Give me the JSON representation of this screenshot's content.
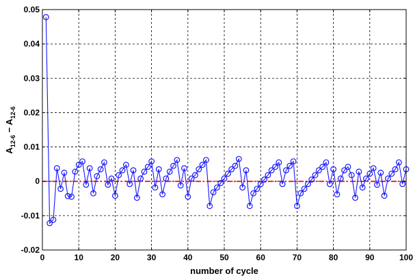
{
  "chart_data": {
    "type": "line",
    "xlabel": "number of cycle",
    "ylabel_main": "A",
    "ylabel_sub": "12-6",
    "ylabel_op": " − ",
    "xlim": [
      0,
      100
    ],
    "ylim": [
      -0.02,
      0.05
    ],
    "xticks": [
      0,
      10,
      20,
      30,
      40,
      50,
      60,
      70,
      80,
      90,
      100
    ],
    "yticks": [
      -0.02,
      -0.01,
      0,
      0.01,
      0.02,
      0.03,
      0.04,
      0.05
    ],
    "ytick_labels": [
      "-0.02",
      "-0.01",
      "0",
      "0.01",
      "0.02",
      "0.03",
      "0.04",
      "0.05"
    ],
    "grid": true,
    "series": [
      {
        "color": "#1515ff",
        "marker": "circle",
        "x": [
          1,
          2,
          3,
          4,
          5,
          6,
          7,
          8,
          9,
          10,
          11,
          12,
          13,
          14,
          15,
          16,
          17,
          18,
          19,
          20,
          21,
          22,
          23,
          24,
          25,
          26,
          27,
          28,
          29,
          30,
          31,
          32,
          33,
          34,
          35,
          36,
          37,
          38,
          39,
          40,
          41,
          42,
          43,
          44,
          45,
          46,
          47,
          48,
          49,
          50,
          51,
          52,
          53,
          54,
          55,
          56,
          57,
          58,
          59,
          60,
          61,
          62,
          63,
          64,
          65,
          66,
          67,
          68,
          69,
          70,
          71,
          72,
          73,
          74,
          75,
          76,
          77,
          78,
          79,
          80,
          81,
          82,
          83,
          84,
          85,
          86,
          87,
          88,
          89,
          90,
          91,
          92,
          93,
          94,
          95,
          96,
          97,
          98,
          99,
          100
        ],
        "y": [
          0.0478,
          -0.0122,
          -0.0112,
          0.0038,
          -0.0022,
          0.0025,
          -0.0043,
          -0.0045,
          0.0028,
          0.0048,
          0.0058,
          -0.001,
          0.0038,
          -0.0035,
          0.0015,
          0.0035,
          0.0055,
          -0.001,
          0.0008,
          -0.0042,
          0.0018,
          0.0032,
          0.0048,
          -0.0008,
          0.0032,
          -0.0048,
          0.0008,
          0.0028,
          0.0042,
          0.0058,
          -0.0018,
          0.0035,
          -0.0038,
          0.0008,
          0.0028,
          0.0045,
          0.0062,
          -0.0012,
          0.0038,
          -0.0045,
          0.0008,
          0.0018,
          0.0035,
          0.0048,
          0.0062,
          -0.0072,
          -0.0032,
          -0.0018,
          -0.0005,
          0.0008,
          0.0022,
          0.0035,
          0.0045,
          0.0065,
          -0.0018,
          0.0032,
          -0.0072,
          -0.0035,
          -0.0022,
          -0.0008,
          0.0005,
          0.0018,
          0.0032,
          0.0042,
          0.0055,
          -0.0008,
          0.0032,
          0.0045,
          0.0058,
          -0.0072,
          -0.0035,
          -0.0022,
          -0.0008,
          0.0005,
          0.0018,
          0.0032,
          0.0042,
          0.0055,
          -0.0008,
          0.0035,
          -0.0038,
          0.0008,
          0.0032,
          0.0042,
          0.0018,
          -0.0048,
          0.0028,
          -0.0018,
          0.0008,
          0.0022,
          0.0038,
          -0.001,
          0.0025,
          -0.0042,
          0.0008,
          0.0022,
          0.0035,
          0.0055,
          -0.0008,
          0.0035
        ]
      },
      {
        "color": "#ff0000",
        "style": "dash-dot",
        "x": [
          0,
          100
        ],
        "y": [
          0,
          0
        ]
      }
    ]
  }
}
